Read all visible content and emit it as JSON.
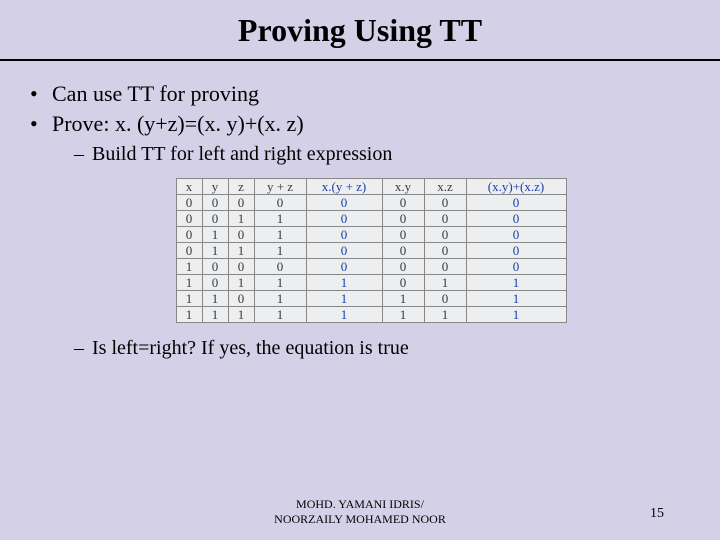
{
  "title": "Proving Using TT",
  "bullets": {
    "b1": "Can use TT for proving",
    "b2": "Prove: x. (y+z)=(x. y)+(x. z)",
    "sub1": "Build TT for left and right expression",
    "sub2": "Is left=right? If yes, the equation is true"
  },
  "table": {
    "headers": [
      "x",
      "y",
      "z",
      "y + z",
      "x.(y + z)",
      "x.y",
      "x.z",
      "(x.y)+(x.z)"
    ],
    "header_highlight": [
      false,
      false,
      false,
      false,
      true,
      false,
      false,
      true
    ],
    "col_classes": [
      "col-narrow",
      "col-narrow",
      "col-narrow",
      "col-mid",
      "col-wide1",
      "col-wide2",
      "col-wide2",
      "col-wide3"
    ],
    "rows": [
      [
        "0",
        "0",
        "0",
        "0",
        "0",
        "0",
        "0",
        "0"
      ],
      [
        "0",
        "0",
        "1",
        "1",
        "0",
        "0",
        "0",
        "0"
      ],
      [
        "0",
        "1",
        "0",
        "1",
        "0",
        "0",
        "0",
        "0"
      ],
      [
        "0",
        "1",
        "1",
        "1",
        "0",
        "0",
        "0",
        "0"
      ],
      [
        "1",
        "0",
        "0",
        "0",
        "0",
        "0",
        "0",
        "0"
      ],
      [
        "1",
        "0",
        "1",
        "1",
        "1",
        "0",
        "1",
        "1"
      ],
      [
        "1",
        "1",
        "0",
        "1",
        "1",
        "1",
        "0",
        "1"
      ],
      [
        "1",
        "1",
        "1",
        "1",
        "1",
        "1",
        "1",
        "1"
      ]
    ],
    "cell_highlight_cols": [
      4,
      7
    ]
  },
  "footer": {
    "line1": "MOHD. YAMANI IDRIS/",
    "line2": "NOORZAILY MOHAMED NOOR"
  },
  "page_number": "15"
}
